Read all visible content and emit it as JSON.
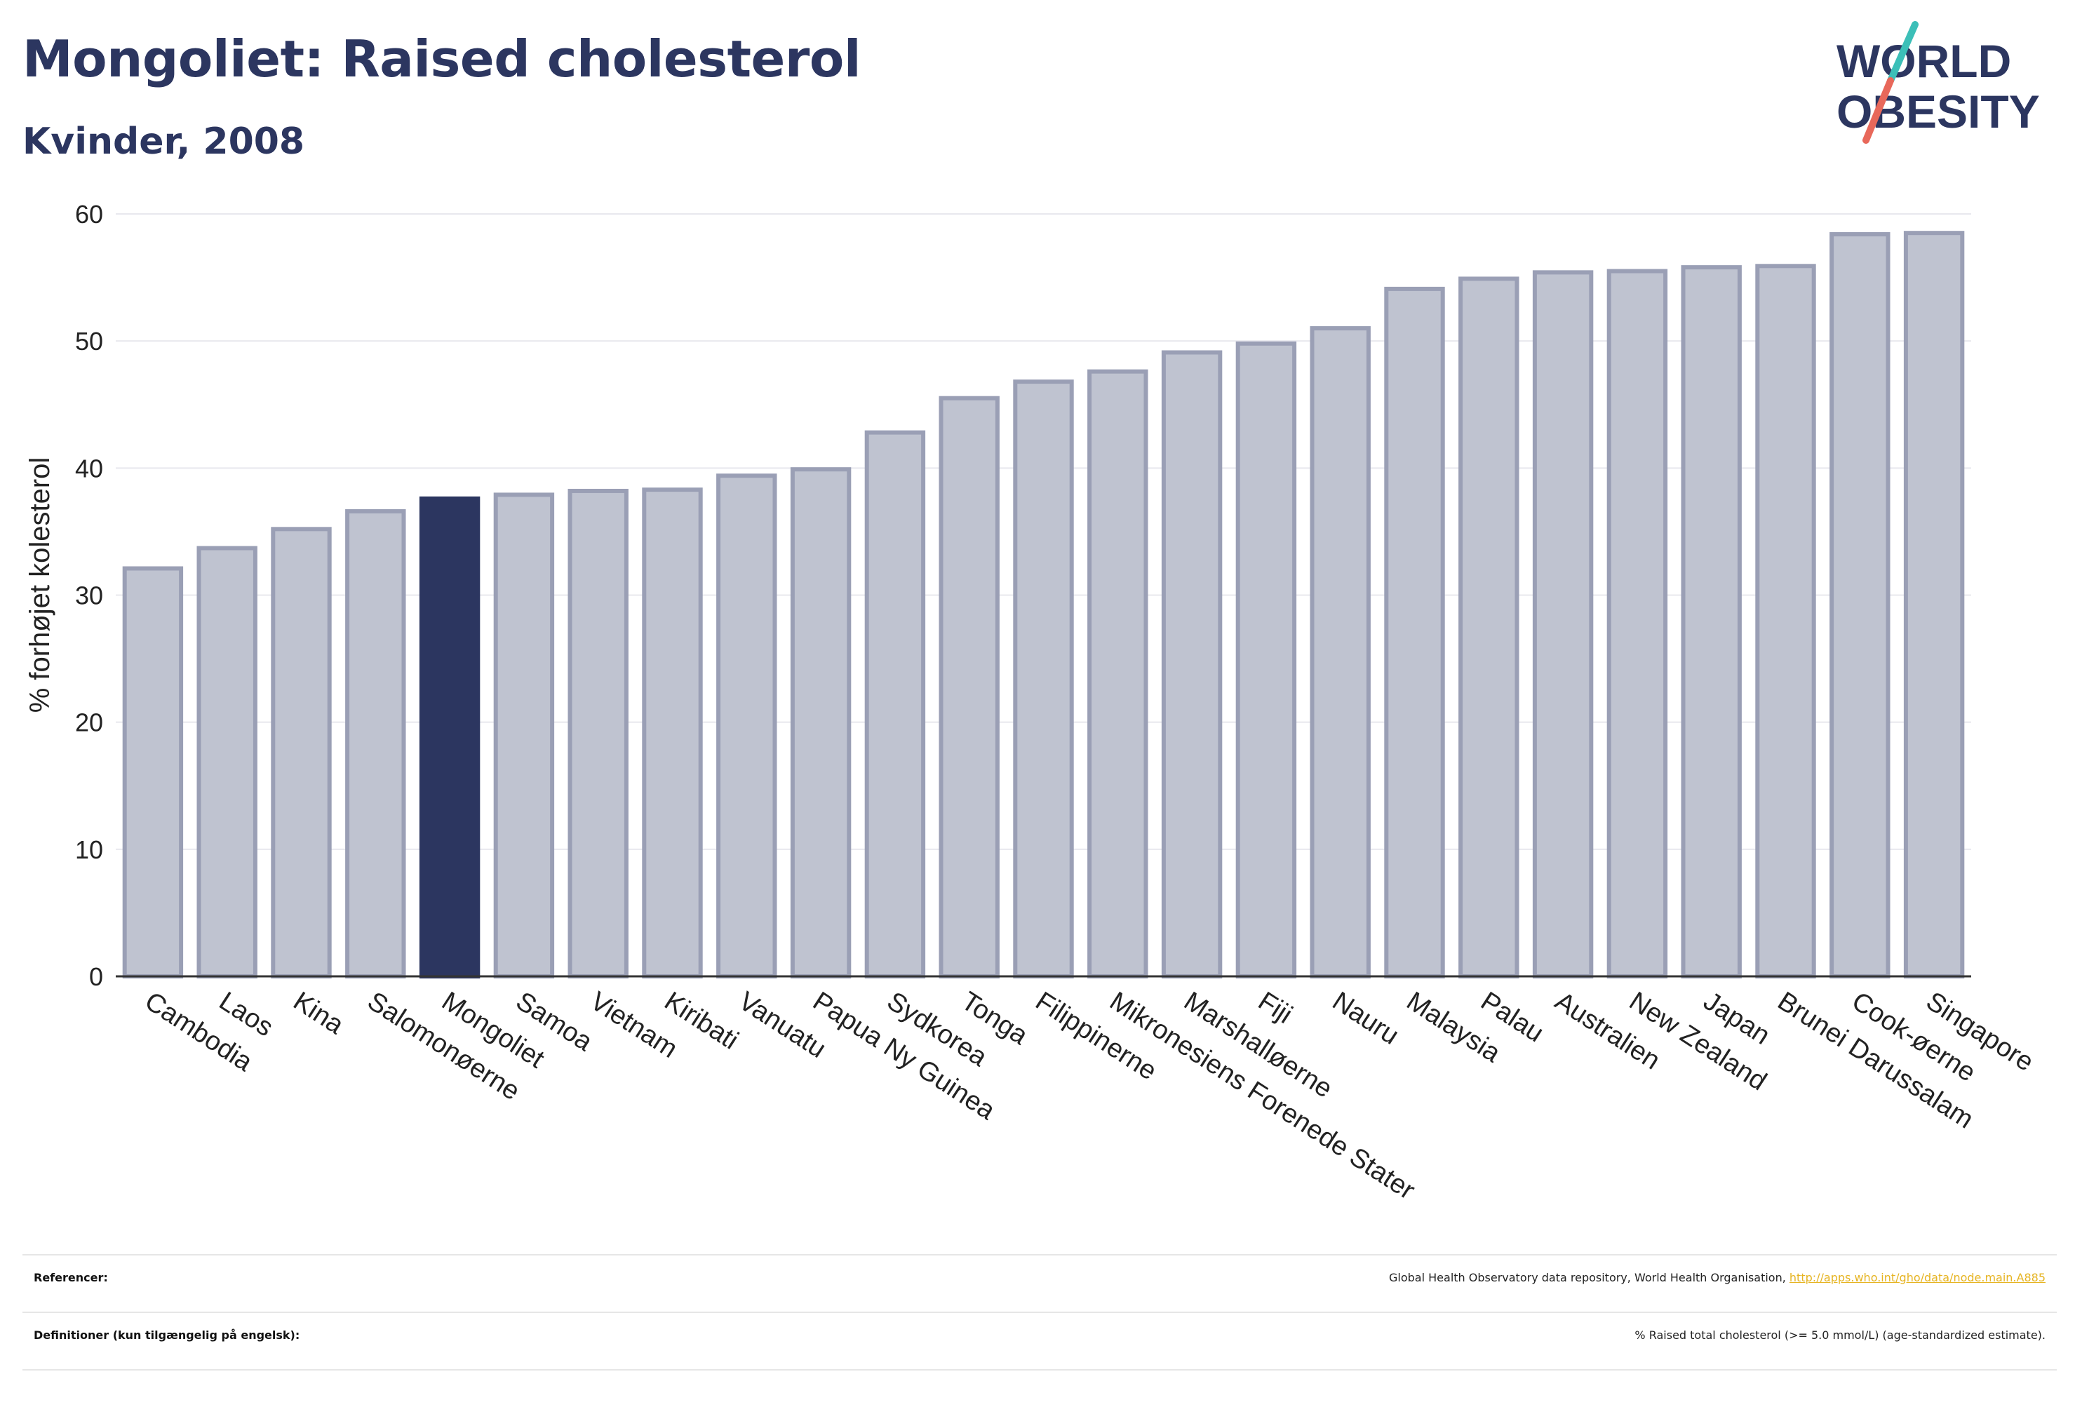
{
  "header": {
    "title": "Mongoliet: Raised cholesterol",
    "subtitle": "Kvinder, 2008"
  },
  "logo": {
    "line1": "WORLD",
    "line2": "OBESITY"
  },
  "chart_data": {
    "type": "bar",
    "ylabel": "% forhøjet kolesterol",
    "ylim": [
      0,
      60
    ],
    "yticks": [
      0,
      10,
      20,
      30,
      40,
      50,
      60
    ],
    "grid": true,
    "highlight": "Mongoliet",
    "colors": {
      "bar": "#bfc3d0",
      "bar_border": "#9a9fb5",
      "highlight": "#2c3660",
      "grid": "#e8e8ee"
    },
    "categories": [
      "Cambodia",
      "Laos",
      "Kina",
      "Salomonøerne",
      "Mongoliet",
      "Samoa",
      "Vietnam",
      "Kiribati",
      "Vanuatu",
      "Papua Ny Guinea",
      "Sydkorea",
      "Tonga",
      "Filippinerne",
      "Mikronesiens Forenede Stater",
      "Marshalløerne",
      "Fiji",
      "Nauru",
      "Malaysia",
      "Palau",
      "Australien",
      "New Zealand",
      "Japan",
      "Brunei Darussalam",
      "Cook-øerne",
      "Singapore"
    ],
    "values": [
      32.1,
      33.7,
      35.2,
      36.6,
      37.6,
      37.9,
      38.2,
      38.3,
      39.4,
      39.9,
      42.8,
      45.5,
      46.8,
      47.6,
      49.1,
      49.8,
      51.0,
      54.1,
      54.9,
      55.4,
      55.5,
      55.8,
      55.9,
      58.4,
      58.5
    ]
  },
  "footer": {
    "references_label": "Referencer:",
    "references_text": "Global Health Observatory data repository, World Health Organisation, ",
    "references_link": "http://apps.who.int/gho/data/node.main.A885",
    "definitions_label": "Definitioner (kun tilgængelig på engelsk):",
    "definitions_text": "% Raised total cholesterol (>= 5.0 mmol/L) (age-standardized estimate)."
  }
}
